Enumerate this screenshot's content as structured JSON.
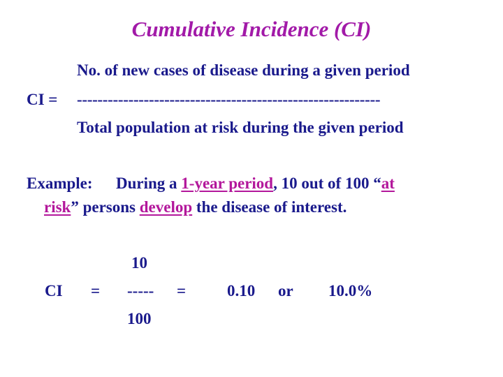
{
  "title": "Cumulative Incidence (CI)",
  "formula": {
    "label": "CI =",
    "numerator": "No. of new cases of disease during a given period",
    "divider": "-----------------------------------------------------------",
    "denominator": "Total population at risk during the given period"
  },
  "example": {
    "label": "Example:",
    "seg1": "During a ",
    "period": "1-year period",
    "seg2": ", 10 out of 100 “",
    "at": "at",
    "risk": "risk",
    "seg3": "” persons ",
    "develop": "develop",
    "seg4": " the disease of interest."
  },
  "calculation": {
    "ci": "CI",
    "equals": "=",
    "numerator": "10",
    "bar": "-----",
    "denominator": "100",
    "decimal": "0.10",
    "or": "or",
    "percent": "10.0%"
  },
  "colors": {
    "text": "#1a1a8c",
    "highlight": "#b3179b",
    "title": "#a21aa8"
  }
}
